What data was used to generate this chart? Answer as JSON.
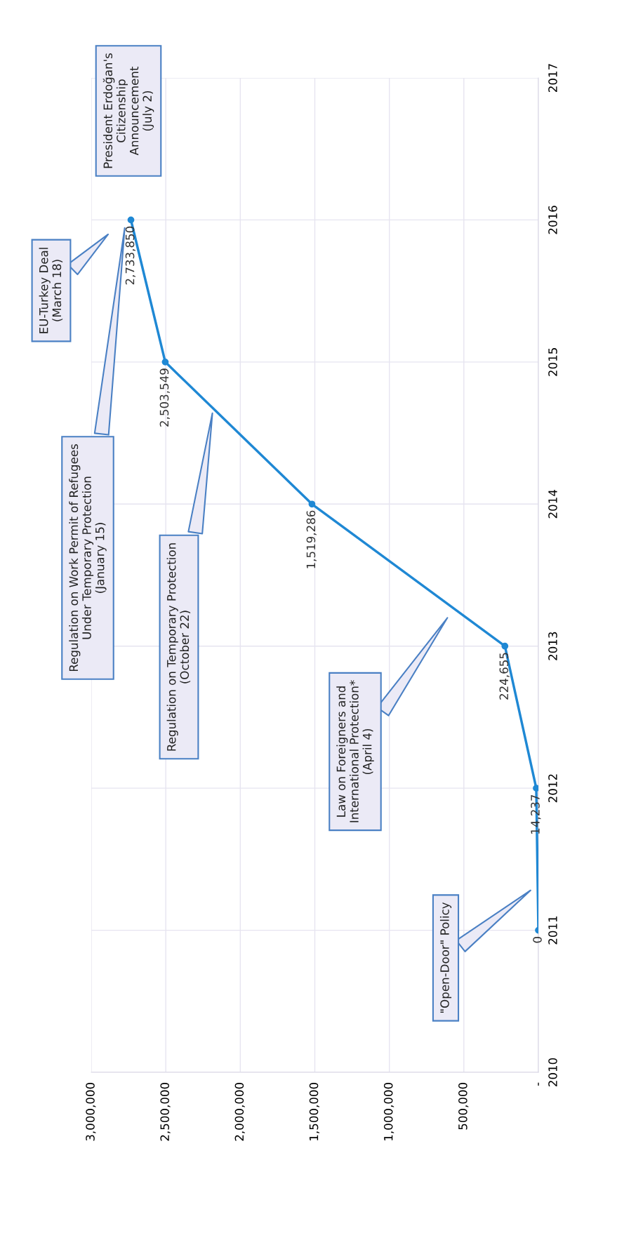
{
  "chart_data": {
    "type": "line",
    "orientation": "horizontal",
    "x": [
      2011,
      2012,
      2013,
      2014,
      2015,
      2016
    ],
    "series": [
      {
        "color": "#1f88d4",
        "values": [
          0,
          14237,
          224655,
          1519286,
          2503549,
          2733850
        ],
        "value_labels": [
          "0",
          "14,237",
          "224,655",
          "1,519,286",
          "2,503,549",
          "2,733,850"
        ]
      }
    ],
    "ylim": [
      2010,
      2017
    ],
    "yticks": [
      2010,
      2011,
      2012,
      2013,
      2014,
      2015,
      2016,
      2017
    ],
    "xlim": [
      3000000,
      0
    ],
    "xticks": [
      {
        "value": 0,
        "label": "-"
      },
      {
        "value": 500000,
        "label": "500,000"
      },
      {
        "value": 1000000,
        "label": "1,000,000"
      },
      {
        "value": 1500000,
        "label": "1,500,000"
      },
      {
        "value": 2000000,
        "label": "2,000,000"
      },
      {
        "value": 2500000,
        "label": "2,500,000"
      },
      {
        "value": 3000000,
        "label": "3,000,000"
      }
    ],
    "grid": true,
    "marker": "circle",
    "line_style": "solid",
    "annotations": [
      "\"Open-Door\" Policy",
      "Law on Foreigners and\nInternational Protection*\n(April 4)",
      "Regulation on Temporary Protection\n(October 22)",
      "Regulation on Work Permit of Refugees\nUnder Temporary Protection\n(January 15)",
      "EU-Turkey Deal\n(March 18)",
      "President Erdoğan's\nCitizenship\nAnnouncement\n(July 2)"
    ]
  }
}
